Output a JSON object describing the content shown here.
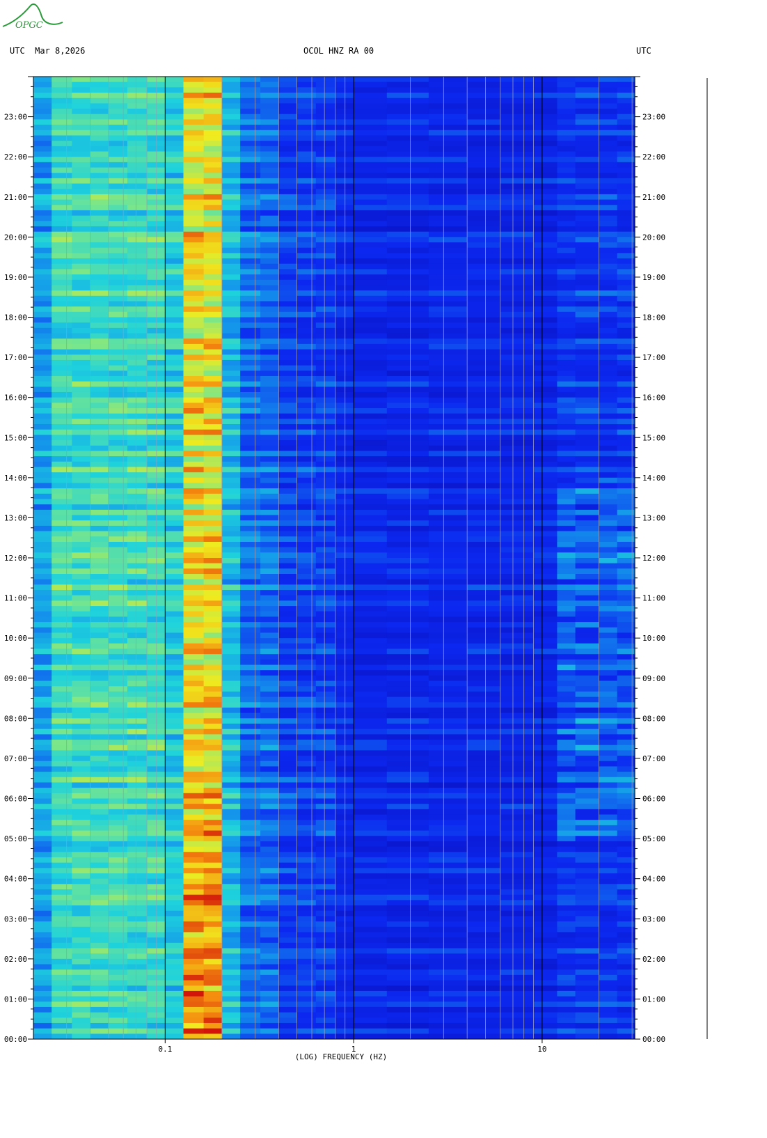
{
  "header": {
    "logo_text": "OPGC",
    "left_label": "UTC  Mar 8,2026",
    "center_label": "OCOL HNZ RA 00",
    "right_label": "UTC"
  },
  "colors": {
    "low": "#0a1ee6",
    "mid": "#1cc8e6",
    "high": "#f0e81e",
    "peak": "#e0100a",
    "logo": "#2a9a3a"
  },
  "chart_data": {
    "type": "heatmap",
    "title": "OCOL HNZ RA 00",
    "xlabel": "(LOG) FREQUENCY (HZ)",
    "ylabel": "",
    "x_scale": "log",
    "xlim": [
      0.02,
      31
    ],
    "x_tick_labels": [
      {
        "value": 0.1,
        "label": "0.1"
      },
      {
        "value": 1,
        "label": "1"
      },
      {
        "value": 10,
        "label": "10"
      }
    ],
    "time_axis_hours": [
      0,
      24
    ],
    "y_tick_labels": [
      "00:00",
      "01:00",
      "02:00",
      "03:00",
      "04:00",
      "05:00",
      "06:00",
      "07:00",
      "08:00",
      "09:00",
      "10:00",
      "11:00",
      "12:00",
      "13:00",
      "14:00",
      "15:00",
      "16:00",
      "17:00",
      "18:00",
      "19:00",
      "20:00",
      "21:00",
      "22:00",
      "23:00"
    ],
    "grid": true,
    "legend": "none"
  }
}
